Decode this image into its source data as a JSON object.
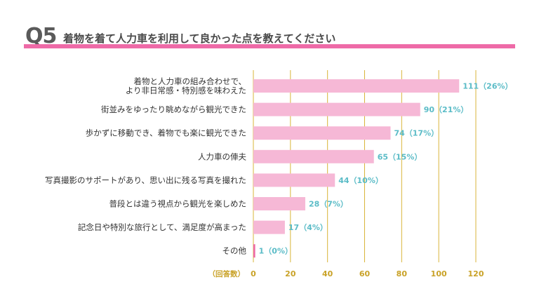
{
  "header": {
    "qnum": "Q5",
    "title": "着物を着て人力車を利用して良かった点を教えてください"
  },
  "colors": {
    "accent": "#ee6aa7",
    "bar": "#f6b8d6",
    "bar_last": "#ee6aa7",
    "grid": "#d9b53a",
    "value_text": "#5bbcc7",
    "tick_text": "#c9a227"
  },
  "chart_data": {
    "type": "bar",
    "orientation": "horizontal",
    "categories": [
      [
        "着物と人力車の組み合わせで、",
        "より非日常感・特別感を味わえた"
      ],
      [
        "街並みをゆったり眺めながら観光できた"
      ],
      [
        "歩かずに移動でき、着物でも楽に観光できた"
      ],
      [
        "人力車の俥夫"
      ],
      [
        "写真撮影のサポートがあり、思い出に残る写真を撮れた"
      ],
      [
        "普段とは違う視点から観光を楽しめた"
      ],
      [
        "記念日や特別な旅行として、満足度が高まった"
      ],
      [
        "その他"
      ]
    ],
    "values": [
      111,
      90,
      74,
      65,
      44,
      28,
      17,
      1
    ],
    "percents": [
      "26%",
      "21%",
      "17%",
      "15%",
      "10%",
      "7%",
      "4%",
      "0%"
    ],
    "value_labels": [
      "111（26%）",
      "90（21%）",
      "74（17%）",
      "65（15%）",
      "44（10%）",
      "28（7%）",
      "17（4%）",
      "1（0%）"
    ],
    "xlim": [
      0,
      120
    ],
    "xticks": [
      0,
      20,
      40,
      60,
      80,
      100,
      120
    ],
    "xlabel": "（回答数）",
    "grid": true
  }
}
